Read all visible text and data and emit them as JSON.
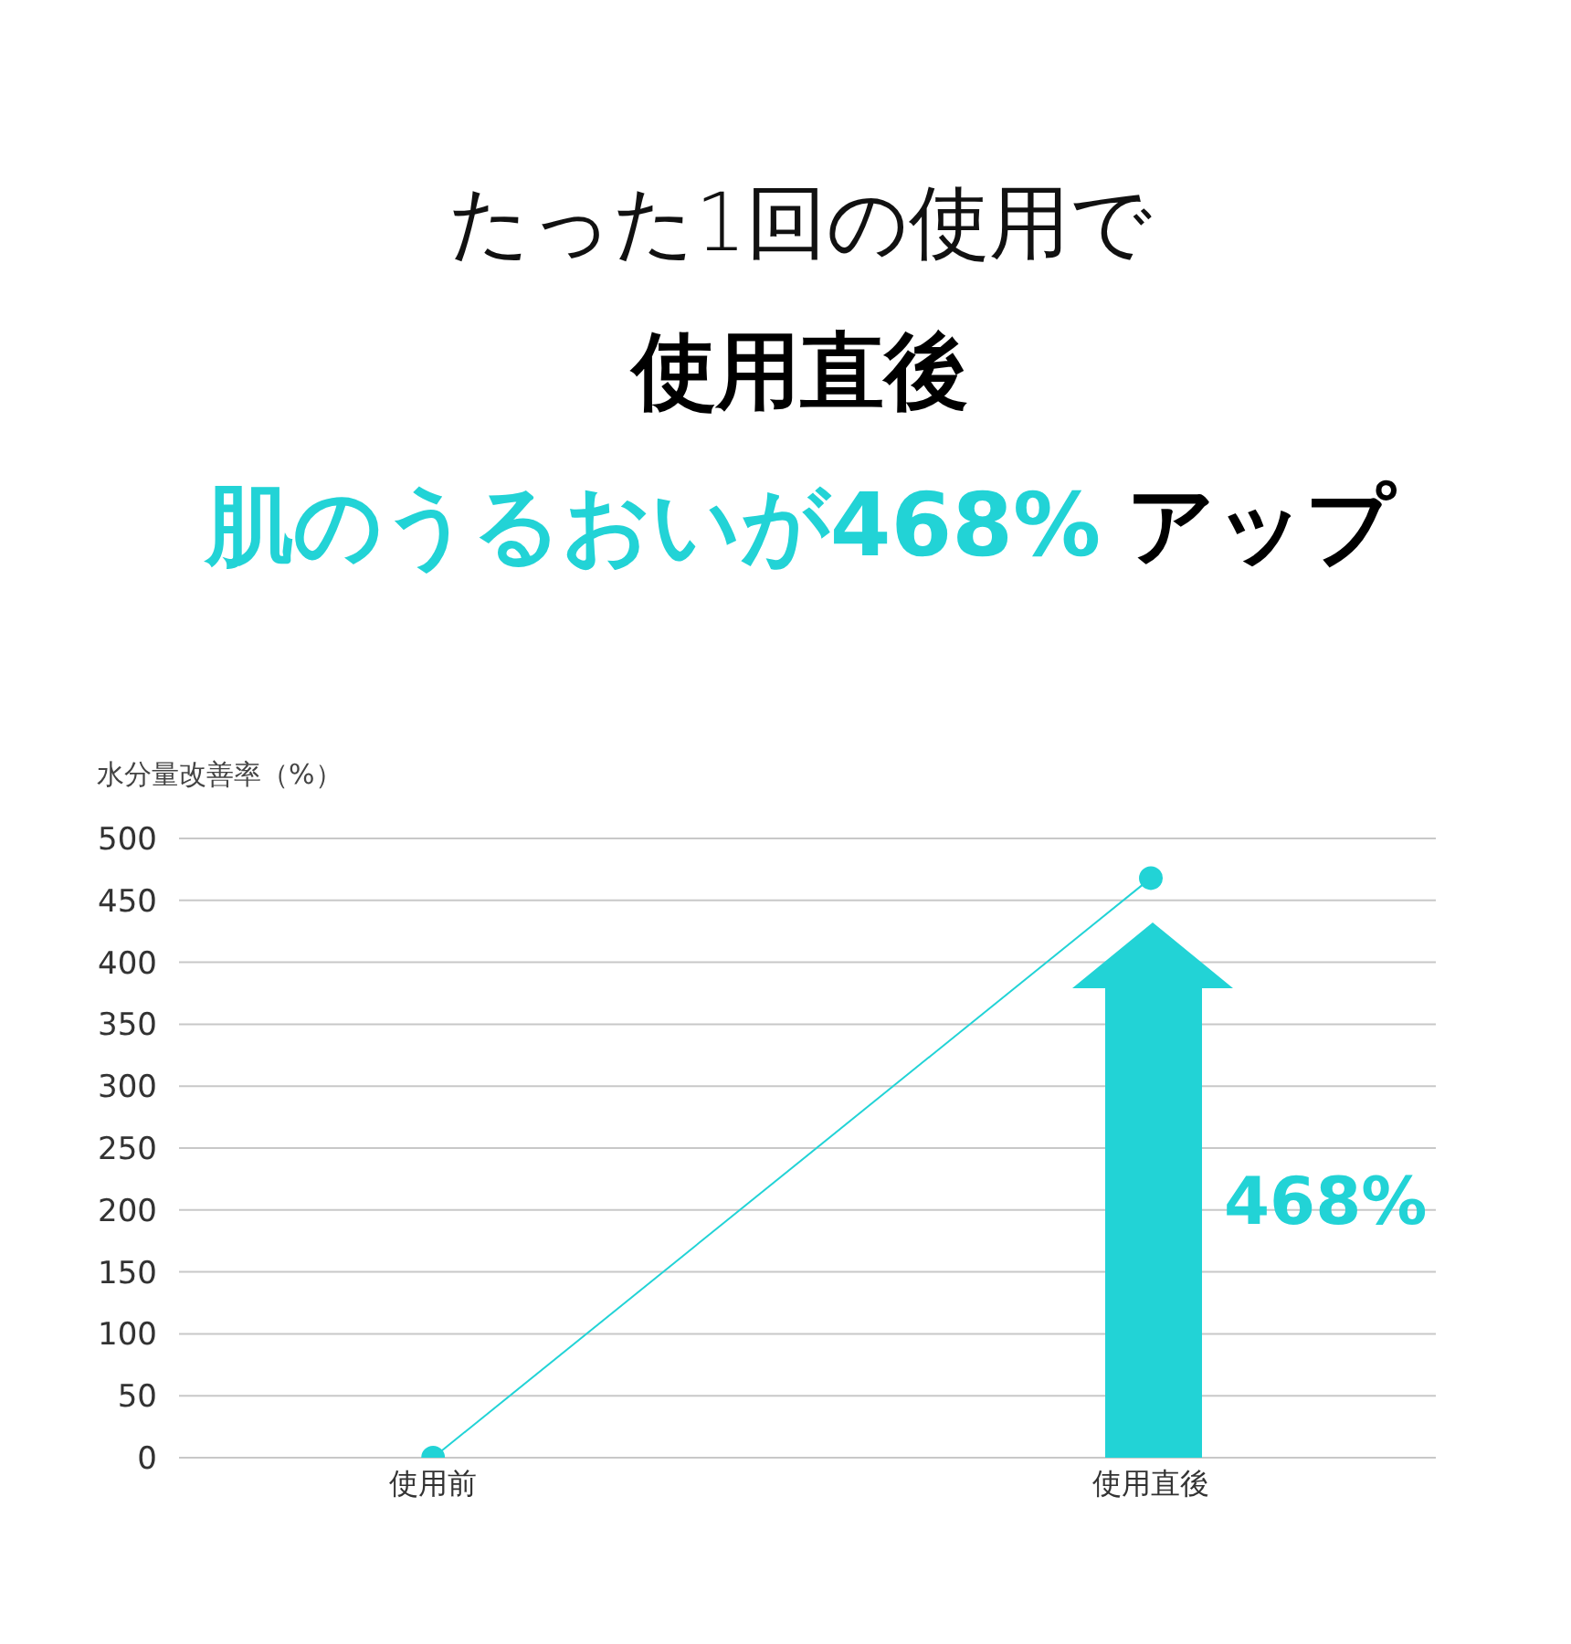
{
  "chart_data": {
    "type": "line",
    "title": "たった1回の使用で",
    "subtitle": "使用直後",
    "annotations": [
      "肌のうるおいが468%",
      "アップ",
      "468%"
    ],
    "ylabel": "水分量改善率（%）",
    "categories": [
      "使用前",
      "使用直後"
    ],
    "series": [
      {
        "color": "#22d3d6",
        "values": [
          0,
          468
        ]
      }
    ],
    "ylim": [
      0,
      500
    ],
    "yticks": [
      0,
      50,
      100,
      150,
      200,
      250,
      300,
      350,
      400,
      450,
      500
    ],
    "grid": "y",
    "marker": "circle",
    "line_style": "solid",
    "legend": false
  }
}
